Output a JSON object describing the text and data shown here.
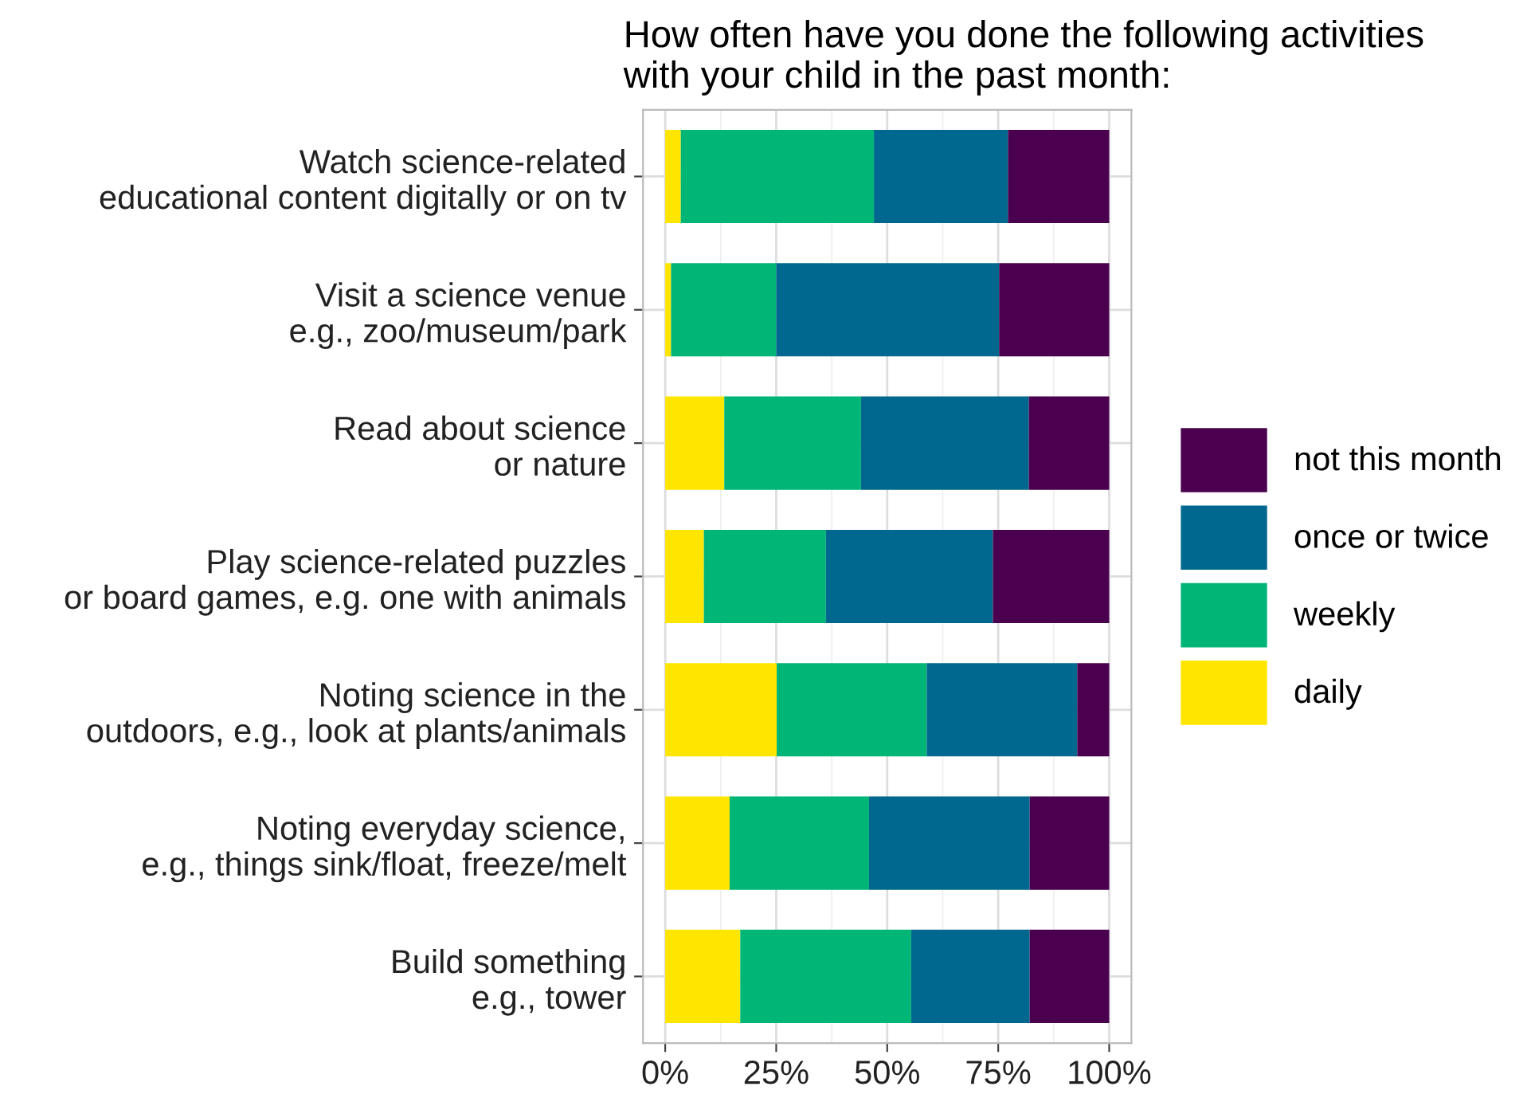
{
  "chart_data": {
    "type": "bar",
    "orientation": "horizontal",
    "stacked": true,
    "title": "How often have you done the following activities\nwith your child in the past month:",
    "categories": [
      "Watch science-related\neducational content digitally or on tv",
      "Visit a science venue\ne.g., zoo/museum/park",
      "Read about science\nor nature",
      "Play science-related puzzles\nor board games, e.g. one with animals",
      "Noting science in the\noutdoors, e.g., look at plants/animals",
      "Noting everyday science,\ne.g., things sink/float, freeze/melt",
      "Build something\ne.g., tower"
    ],
    "series": [
      {
        "name": "daily",
        "color": "#ffe600",
        "values": [
          3.5,
          1.3,
          13.3,
          8.7,
          25.1,
          14.5,
          16.9
        ]
      },
      {
        "name": "weekly",
        "color": "#00b676",
        "values": [
          43.5,
          23.7,
          30.8,
          27.5,
          33.8,
          31.4,
          38.5
        ]
      },
      {
        "name": "once or twice",
        "color": "#00688f",
        "values": [
          30.2,
          50.2,
          37.8,
          37.6,
          33.9,
          36.2,
          26.7
        ]
      },
      {
        "name": "not this month",
        "color": "#4b004f",
        "values": [
          22.8,
          24.8,
          18.1,
          26.2,
          7.2,
          17.9,
          17.9
        ]
      }
    ],
    "xlim": [
      -5,
      105
    ],
    "xticks": [
      {
        "value": 0,
        "label": "0%"
      },
      {
        "value": 25,
        "label": "25%"
      },
      {
        "value": 50,
        "label": "50%"
      },
      {
        "value": 75,
        "label": "75%"
      },
      {
        "value": 100,
        "label": "100%"
      }
    ],
    "grid": true,
    "legend": "right"
  }
}
